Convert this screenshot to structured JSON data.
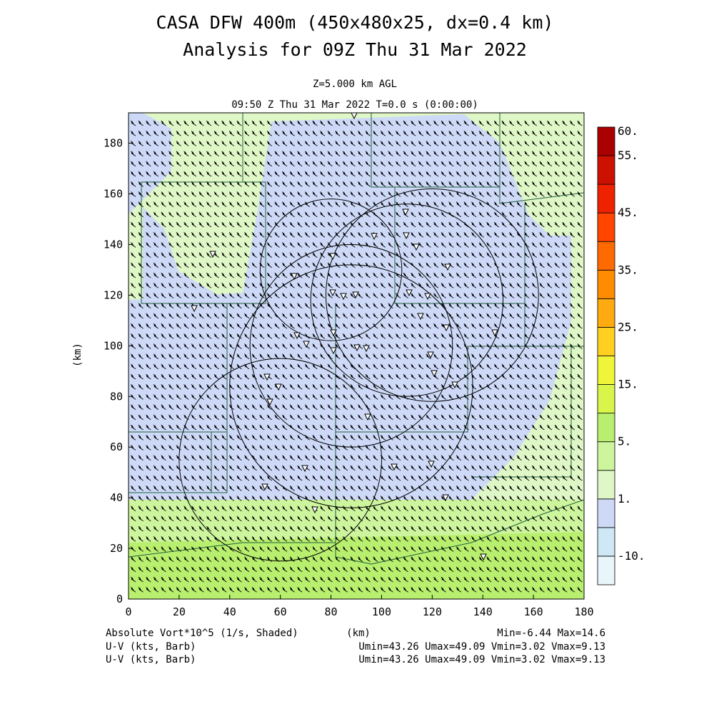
{
  "chart_data": {
    "type": "heatmap",
    "title_line1": "CASA DFW 400m (450x480x25, dx=0.4 km)",
    "title_line2": "Analysis for 09Z Thu 31 Mar 2022",
    "level_label": "Z=5.000 km AGL",
    "time_label": "09:50 Z Thu 31 Mar 2022   T=0.0 s (0:00:00)",
    "xlabel": "(km)",
    "ylabel": "(km)",
    "xlim": [
      0,
      180
    ],
    "ylim": [
      0,
      192
    ],
    "x_ticks": [
      "0",
      "20",
      "40",
      "60",
      "80",
      "100",
      "120",
      "140",
      "160",
      "180"
    ],
    "y_ticks": [
      "0",
      "20",
      "40",
      "60",
      "80",
      "100",
      "120",
      "140",
      "160",
      "180"
    ],
    "colorbar_labels": [
      "60.",
      "55.",
      "45.",
      "35.",
      "25.",
      "15.",
      "5.",
      "1.",
      "-10."
    ],
    "colorbar_colors": [
      "#e8f6fb",
      "#cfe8f5",
      "#cdd9f7",
      "#dff7c6",
      "#cdf59d",
      "#b8ef6e",
      "#d9f54a",
      "#f0f53a",
      "#ffd020",
      "#ffaa10",
      "#ff8c00",
      "#ff6a00",
      "#ff4500",
      "#ee2200",
      "#cc1100",
      "#aa0000"
    ],
    "grid": false,
    "regions": [
      {
        "name": "green band",
        "x": [
          0,
          180
        ],
        "y": [
          0,
          40
        ],
        "value": 8
      },
      {
        "name": "blue band",
        "x": [
          0,
          165
        ],
        "y": [
          40,
          100
        ],
        "value": 2
      },
      {
        "name": "west green",
        "x": [
          0,
          35
        ],
        "y": [
          115,
          165
        ],
        "value": 5
      }
    ],
    "radar_rings": [
      {
        "center": [
          88,
          100
        ],
        "radius": 40
      },
      {
        "center": [
          88,
          84
        ],
        "radius": 48
      },
      {
        "center": [
          60,
          55
        ],
        "radius": 40
      },
      {
        "center": [
          110,
          118
        ],
        "radius": 38
      },
      {
        "center": [
          120,
          120
        ],
        "radius": 42
      },
      {
        "center": [
          80,
          130
        ],
        "radius": 28
      }
    ],
    "barbs_note": "U-V wind barbs"
  },
  "footer": {
    "left1": "Absolute Vort*10^5 (1/s, Shaded)",
    "center1": "(km)",
    "right1": "Min=-6.44 Max=14.6",
    "left2": "U-V (kts, Barb)",
    "right2": "Umin=43.26  Umax=49.09  Vmin=3.02  Vmax=9.13",
    "left3": "U-V (kts, Barb)",
    "right3": "Umin=43.26  Umax=49.09  Vmin=3.02  Vmax=9.13"
  }
}
